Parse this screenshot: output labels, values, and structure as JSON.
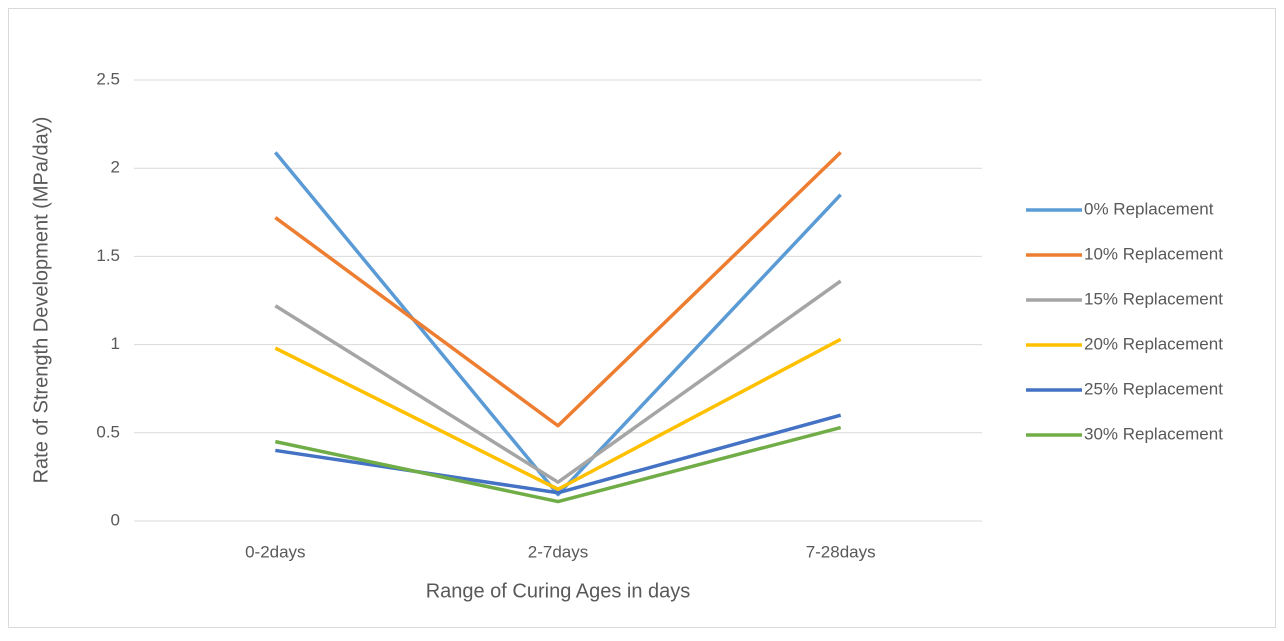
{
  "chart_data": {
    "type": "line",
    "x_label": "Range of Curing Ages in days",
    "y_label": "Rate of Strength Development (MPa/day)",
    "categories": [
      "0-2days",
      "2-7days",
      "7-28days"
    ],
    "series": [
      {
        "name": "0% Replacement",
        "color": "#5b9bd5",
        "values": [
          2.09,
          0.15,
          1.85
        ]
      },
      {
        "name": "10% Replacement",
        "color": "#ed7d31",
        "values": [
          1.72,
          0.54,
          2.09
        ]
      },
      {
        "name": "15% Replacement",
        "color": "#a5a5a5",
        "values": [
          1.22,
          0.22,
          1.36
        ]
      },
      {
        "name": "20% Replacement",
        "color": "#ffc000",
        "values": [
          0.98,
          0.18,
          1.03
        ]
      },
      {
        "name": "25% Replacement",
        "color": "#4472c4",
        "values": [
          0.4,
          0.16,
          0.6
        ]
      },
      {
        "name": "30% Replacement",
        "color": "#70ad47",
        "values": [
          0.45,
          0.11,
          0.53
        ]
      }
    ],
    "ylim": [
      0,
      2.5
    ],
    "yticks": [
      0,
      0.5,
      1,
      1.5,
      2,
      2.5
    ],
    "grid": true,
    "legend": "right"
  }
}
